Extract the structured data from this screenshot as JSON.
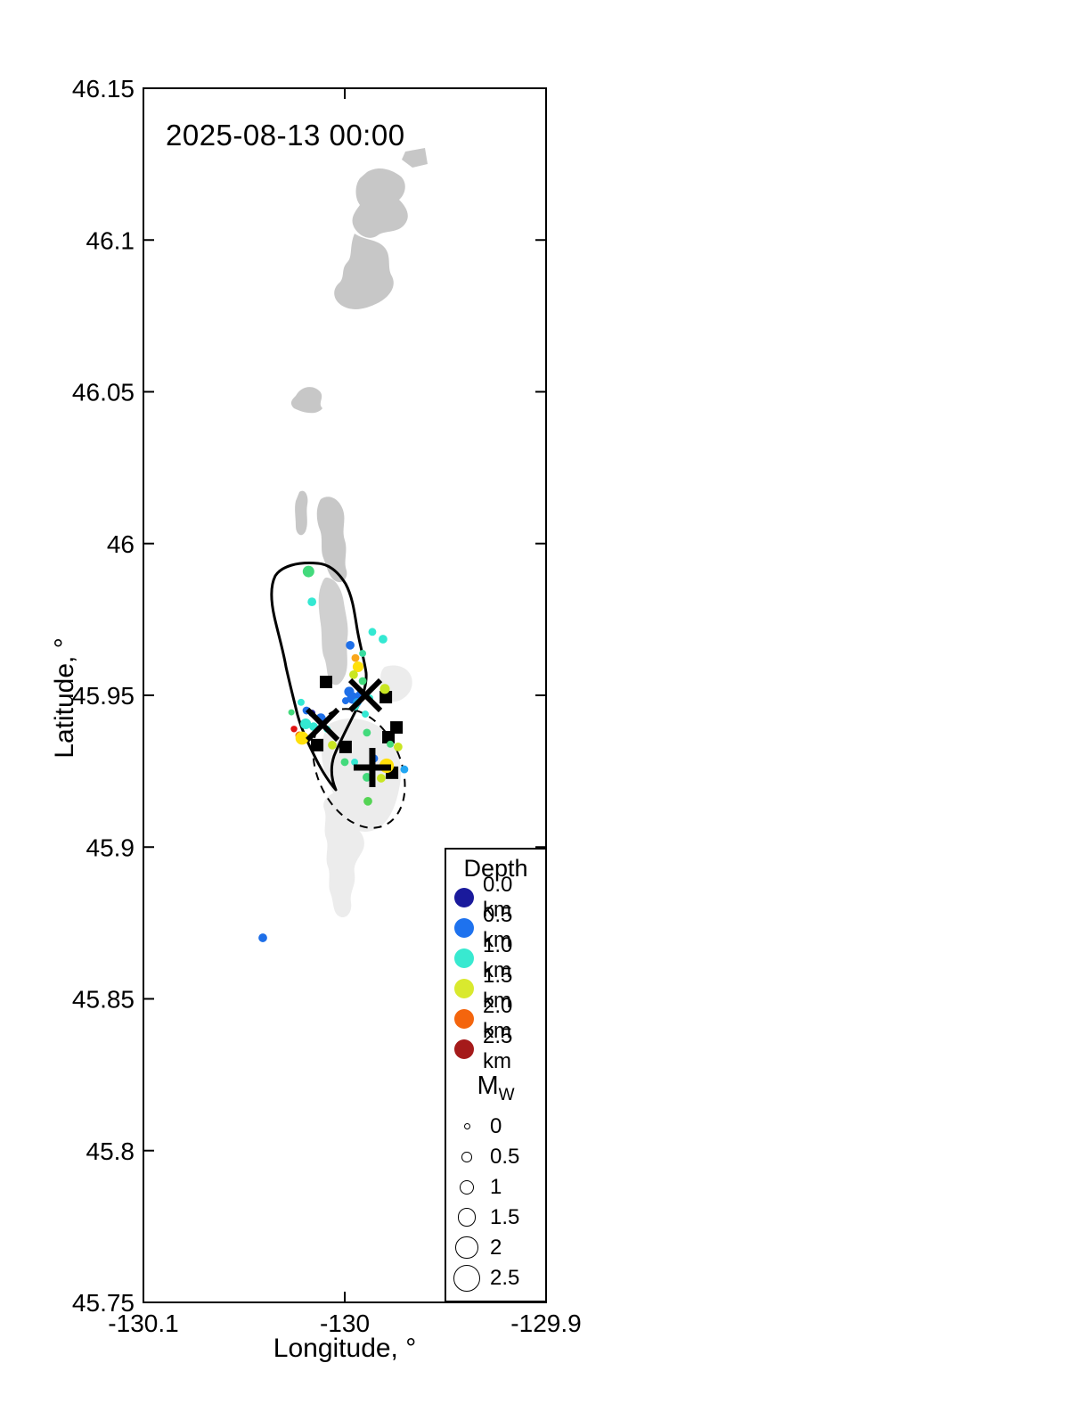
{
  "title": "2025-08-13 00:00",
  "axes": {
    "x_label": "Longitude, °",
    "y_label": "Latitude, °",
    "x_ticks": [
      {
        "value": -130.1,
        "label": "-130.1"
      },
      {
        "value": -130.0,
        "label": "-130"
      },
      {
        "value": -129.9,
        "label": "-129.9"
      }
    ],
    "y_ticks": [
      {
        "value": 46.15,
        "label": "46.15"
      },
      {
        "value": 46.1,
        "label": "46.1"
      },
      {
        "value": 46.05,
        "label": "46.05"
      },
      {
        "value": 46.0,
        "label": "46"
      },
      {
        "value": 45.95,
        "label": "45.95"
      },
      {
        "value": 45.9,
        "label": "45.9"
      },
      {
        "value": 45.85,
        "label": "45.85"
      },
      {
        "value": 45.8,
        "label": "45.8"
      },
      {
        "value": 45.75,
        "label": "45.75"
      }
    ]
  },
  "legend": {
    "depth_title": "Depth",
    "depth_items": [
      {
        "label": "0.0 km",
        "color": "#1a1a9c"
      },
      {
        "label": "0.5 km",
        "color": "#1e72ee"
      },
      {
        "label": "1.0 km",
        "color": "#38e9d0"
      },
      {
        "label": "1.5 km",
        "color": "#d9e92e"
      },
      {
        "label": "2.0 km",
        "color": "#f4650d"
      },
      {
        "label": "2.5 km",
        "color": "#a51a1a"
      }
    ],
    "mw_title": "M",
    "mw_subscript": "W",
    "mw_items": [
      {
        "label": "0",
        "mw": 0
      },
      {
        "label": "0.5",
        "mw": 0.5
      },
      {
        "label": "1",
        "mw": 1
      },
      {
        "label": "1.5",
        "mw": 1.5
      },
      {
        "label": "2",
        "mw": 2
      },
      {
        "label": "2.5",
        "mw": 2.5
      }
    ]
  },
  "chart_data": {
    "type": "scatter",
    "title": "2025-08-13 00:00",
    "xlabel": "Longitude, °",
    "ylabel": "Latitude, °",
    "xlim": [
      -130.1,
      -129.9
    ],
    "ylim": [
      45.75,
      46.15
    ],
    "grid": false,
    "legend_position": "bottom-right",
    "depth_color_scale": [
      {
        "depth_km": 0.0,
        "color": "#1a1a9c"
      },
      {
        "depth_km": 0.5,
        "color": "#1e72ee"
      },
      {
        "depth_km": 1.0,
        "color": "#38e9d0"
      },
      {
        "depth_km": 1.5,
        "color": "#d9e92e"
      },
      {
        "depth_km": 2.0,
        "color": "#f4650d"
      },
      {
        "depth_km": 2.5,
        "color": "#a51a1a"
      }
    ],
    "size_scale_mw": [
      0,
      0.5,
      1,
      1.5,
      2,
      2.5
    ],
    "earthquakes": [
      {
        "lon": -130.018,
        "lat": 45.9908,
        "mw": 0.65,
        "depth_km": 1.2,
        "color": "#43da7c"
      },
      {
        "lon": -130.0163,
        "lat": 45.9808,
        "mw": 0.3,
        "depth_km": 1.0,
        "color": "#34e8d2"
      },
      {
        "lon": -129.9863,
        "lat": 45.9709,
        "mw": 0.2,
        "depth_km": 1.0,
        "color": "#34e8d2"
      },
      {
        "lon": -129.981,
        "lat": 45.9685,
        "mw": 0.3,
        "depth_km": 1.0,
        "color": "#34e8d2"
      },
      {
        "lon": -129.9973,
        "lat": 45.9665,
        "mw": 0.3,
        "depth_km": 0.5,
        "color": "#1e6fe8"
      },
      {
        "lon": -129.9947,
        "lat": 45.9623,
        "mw": 0.2,
        "depth_km": 1.9,
        "color": "#f9a71b"
      },
      {
        "lon": -129.9911,
        "lat": 45.9638,
        "mw": 0.1,
        "depth_km": 1.1,
        "color": "#3adba0"
      },
      {
        "lon": -129.9934,
        "lat": 45.9594,
        "mw": 0.55,
        "depth_km": 1.7,
        "color": "#ffe00a"
      },
      {
        "lon": -129.9956,
        "lat": 45.9568,
        "mw": 0.3,
        "depth_km": 1.5,
        "color": "#c9e622"
      },
      {
        "lon": -129.9911,
        "lat": 45.9547,
        "mw": 0.2,
        "depth_km": 1.2,
        "color": "#43da7c"
      },
      {
        "lon": -129.9801,
        "lat": 45.9521,
        "mw": 0.45,
        "depth_km": 1.5,
        "color": "#c9e622"
      },
      {
        "lon": -129.9996,
        "lat": 45.9482,
        "mw": 0.1,
        "depth_km": 0.5,
        "color": "#1e6fe8"
      },
      {
        "lon": -129.9978,
        "lat": 45.9512,
        "mw": 0.45,
        "depth_km": 0.5,
        "color": "#1e6fe8"
      },
      {
        "lon": -129.9925,
        "lat": 45.9503,
        "mw": 0.2,
        "depth_km": 0.5,
        "color": "#1e6fe8"
      },
      {
        "lon": -129.996,
        "lat": 45.9491,
        "mw": 0.65,
        "depth_km": 0.5,
        "color": "#1e6fe8"
      },
      {
        "lon": -129.9938,
        "lat": 45.9477,
        "mw": 0.3,
        "depth_km": 0.75,
        "color": "#22a6f2"
      },
      {
        "lon": -129.9947,
        "lat": 45.9462,
        "mw": 0.1,
        "depth_km": 1.0,
        "color": "#34e8d2"
      },
      {
        "lon": -129.9876,
        "lat": 45.9491,
        "mw": 0.1,
        "depth_km": 1.0,
        "color": "#34e8d2"
      },
      {
        "lon": -130.0217,
        "lat": 45.9477,
        "mw": 0.1,
        "depth_km": 1.0,
        "color": "#34e8d2"
      },
      {
        "lon": -130.0265,
        "lat": 45.9444,
        "mw": 0.0,
        "depth_km": 1.2,
        "color": "#43da7c"
      },
      {
        "lon": -130.019,
        "lat": 45.945,
        "mw": 0.2,
        "depth_km": 0.5,
        "color": "#1e6fe8"
      },
      {
        "lon": -130.0163,
        "lat": 45.9441,
        "mw": 0.1,
        "depth_km": 0.1,
        "color": "#1a1a9c"
      },
      {
        "lon": -130.0119,
        "lat": 45.9424,
        "mw": 0.45,
        "depth_km": 0.5,
        "color": "#1e6fe8"
      },
      {
        "lon": -130.0194,
        "lat": 45.9406,
        "mw": 0.55,
        "depth_km": 1.0,
        "color": "#34e8d2"
      },
      {
        "lon": -130.0155,
        "lat": 45.9397,
        "mw": 0.3,
        "depth_km": 1.0,
        "color": "#34e8d2"
      },
      {
        "lon": -130.0088,
        "lat": 45.9389,
        "mw": 0.1,
        "depth_km": 1.0,
        "color": "#34e8d2"
      },
      {
        "lon": -130.0252,
        "lat": 45.9389,
        "mw": 0.05,
        "depth_km": 2.3,
        "color": "#e11212"
      },
      {
        "lon": -130.0226,
        "lat": 45.9368,
        "mw": 0.2,
        "depth_km": 2.0,
        "color": "#f4650d"
      },
      {
        "lon": -130.0212,
        "lat": 45.9359,
        "mw": 0.85,
        "depth_km": 1.7,
        "color": "#ffe00a"
      },
      {
        "lon": -130.0062,
        "lat": 45.9336,
        "mw": 0.3,
        "depth_km": 1.5,
        "color": "#c9e622"
      },
      {
        "lon": -129.9898,
        "lat": 45.9438,
        "mw": 0.1,
        "depth_km": 1.0,
        "color": "#34e8d2"
      },
      {
        "lon": -129.989,
        "lat": 45.9377,
        "mw": 0.2,
        "depth_km": 1.2,
        "color": "#43da7c"
      },
      {
        "lon": -129.9774,
        "lat": 45.9339,
        "mw": 0.1,
        "depth_km": 1.2,
        "color": "#43da7c"
      },
      {
        "lon": -129.9735,
        "lat": 45.933,
        "mw": 0.3,
        "depth_km": 1.5,
        "color": "#c9e622"
      },
      {
        "lon": -130.0,
        "lat": 45.928,
        "mw": 0.2,
        "depth_km": 1.2,
        "color": "#43da7c"
      },
      {
        "lon": -129.9951,
        "lat": 45.928,
        "mw": 0.1,
        "depth_km": 1.0,
        "color": "#34e8d2"
      },
      {
        "lon": -129.9854,
        "lat": 45.9292,
        "mw": 0.2,
        "depth_km": 0.5,
        "color": "#1e6fe8"
      },
      {
        "lon": -129.9792,
        "lat": 45.9268,
        "mw": 1.0,
        "depth_km": 1.7,
        "color": "#ffe00a"
      },
      {
        "lon": -129.9704,
        "lat": 45.9256,
        "mw": 0.2,
        "depth_km": 0.75,
        "color": "#22a6f2"
      },
      {
        "lon": -129.9819,
        "lat": 45.9227,
        "mw": 0.3,
        "depth_km": 1.5,
        "color": "#c9e622"
      },
      {
        "lon": -129.989,
        "lat": 45.923,
        "mw": 0.3,
        "depth_km": 1.2,
        "color": "#43da7c"
      },
      {
        "lon": -129.9885,
        "lat": 45.9151,
        "mw": 0.3,
        "depth_km": 1.3,
        "color": "#55d455"
      },
      {
        "lon": -130.0407,
        "lat": 45.8701,
        "mw": 0.3,
        "depth_km": 0.5,
        "color": "#1e6fe8"
      }
    ],
    "station_squares": [
      {
        "lon": -130.0093,
        "lat": 45.9544
      },
      {
        "lon": -129.9796,
        "lat": 45.9494
      },
      {
        "lon": -129.9743,
        "lat": 45.9394
      },
      {
        "lon": -129.9783,
        "lat": 45.9362
      },
      {
        "lon": -129.9996,
        "lat": 45.933
      },
      {
        "lon": -130.0137,
        "lat": 45.9336
      },
      {
        "lon": -129.9765,
        "lat": 45.9245
      }
    ],
    "x_markers": [
      {
        "lon": -129.9898,
        "lat": 45.95
      },
      {
        "lon": -130.011,
        "lat": 45.9403
      }
    ],
    "plus_markers": [
      {
        "lon": -129.9863,
        "lat": 45.9262
      }
    ]
  }
}
